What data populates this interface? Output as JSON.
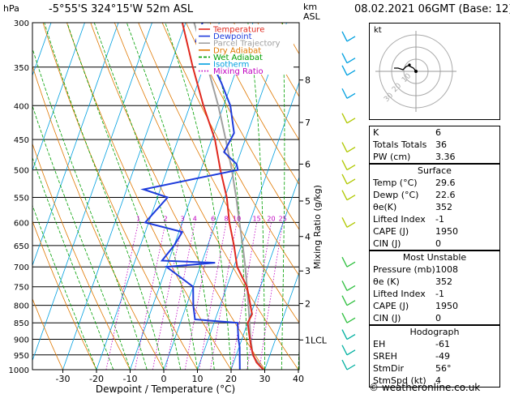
{
  "header": {
    "hpa_label": "hPa",
    "location": "-5°55'S 324°15'W 52m ASL",
    "km_label": "km",
    "asl_label": "ASL",
    "datetime": "08.02.2021 06GMT (Base: 12)"
  },
  "legend": [
    {
      "name": "Temperature",
      "color": "#e0281e"
    },
    {
      "name": "Dewpoint",
      "color": "#1e3cdc"
    },
    {
      "name": "Parcel Trajectory",
      "color": "#a0a0a0"
    },
    {
      "name": "Dry Adiabat",
      "color": "#e07800"
    },
    {
      "name": "Wet Adiabat",
      "color": "#00a000"
    },
    {
      "name": "Isotherm",
      "color": "#00a0e0"
    },
    {
      "name": "Mixing Ratio",
      "color": "#c000c0"
    }
  ],
  "chart_data": {
    "type": "skew-t",
    "xlabel": "Dewpoint / Temperature (°C)",
    "ylabel_right": "Mixing Ratio (g/kg)",
    "x_ticks": [
      "-30",
      "-20",
      "-10",
      "0",
      "10",
      "20",
      "30",
      "40"
    ],
    "p_ticks": [
      300,
      350,
      400,
      450,
      500,
      550,
      600,
      650,
      700,
      750,
      800,
      850,
      900,
      950,
      1000
    ],
    "km_ticks": [
      {
        "km": "8",
        "p": 366
      },
      {
        "km": "7",
        "p": 424
      },
      {
        "km": "6",
        "p": 490
      },
      {
        "km": "5",
        "p": 557
      },
      {
        "km": "4",
        "p": 630
      },
      {
        "km": "3",
        "p": 710
      },
      {
        "km": "2",
        "p": 795
      },
      {
        "km": "1LCL",
        "p": 902
      }
    ],
    "mixing_ratio_labels": [
      "1",
      "2",
      "3",
      "4",
      "6",
      "8",
      "10",
      "15",
      "20",
      "25"
    ],
    "temperature": [
      [
        1000,
        29.6
      ],
      [
        975,
        26.8
      ],
      [
        950,
        25.0
      ],
      [
        925,
        23.6
      ],
      [
        900,
        22.4
      ],
      [
        875,
        21.2
      ],
      [
        850,
        20.0
      ],
      [
        825,
        20.4
      ],
      [
        800,
        19.0
      ],
      [
        750,
        16.0
      ],
      [
        700,
        11.0
      ],
      [
        650,
        7.8
      ],
      [
        600,
        4.0
      ],
      [
        550,
        0.6
      ],
      [
        500,
        -4.2
      ],
      [
        450,
        -9.0
      ],
      [
        400,
        -16.0
      ],
      [
        350,
        -23.2
      ],
      [
        300,
        -31.0
      ]
    ],
    "dewpoint": [
      [
        1000,
        22.6
      ],
      [
        975,
        21.8
      ],
      [
        950,
        21.0
      ],
      [
        925,
        20.2
      ],
      [
        900,
        19.0
      ],
      [
        875,
        18.0
      ],
      [
        850,
        17.0
      ],
      [
        840,
        4.0
      ],
      [
        800,
        2.0
      ],
      [
        750,
        0.0
      ],
      [
        700,
        -10.0
      ],
      [
        690,
        4.0
      ],
      [
        685,
        -12.0
      ],
      [
        650,
        -10.0
      ],
      [
        620,
        -9.0
      ],
      [
        600,
        -21.0
      ],
      [
        550,
        -17.0
      ],
      [
        535,
        -25.0
      ],
      [
        500,
        1.0
      ],
      [
        490,
        0.0
      ],
      [
        470,
        -5.0
      ],
      [
        440,
        -4.0
      ],
      [
        400,
        -8.0
      ],
      [
        370,
        -13.0
      ],
      [
        340,
        -19.0
      ],
      [
        320,
        -25.0
      ],
      [
        300,
        -25.0
      ]
    ],
    "parcel": [
      [
        1000,
        29.6
      ],
      [
        975,
        27.2
      ],
      [
        950,
        24.8
      ],
      [
        925,
        23.8
      ],
      [
        900,
        22.6
      ],
      [
        850,
        20.6
      ],
      [
        800,
        18.4
      ],
      [
        750,
        16.0
      ],
      [
        700,
        13.4
      ],
      [
        650,
        10.4
      ],
      [
        600,
        7.0
      ],
      [
        550,
        3.4
      ],
      [
        500,
        -0.8
      ],
      [
        450,
        -5.8
      ],
      [
        400,
        -11.6
      ],
      [
        350,
        -18.8
      ],
      [
        300,
        -27.5
      ]
    ]
  },
  "hodograph": {
    "label": "kt",
    "ring_labels": [
      "10",
      "20",
      "30"
    ]
  },
  "indices": [
    {
      "label": "K",
      "value": "6"
    },
    {
      "label": "Totals Totals",
      "value": "36"
    },
    {
      "label": "PW (cm)",
      "value": "3.36"
    }
  ],
  "surface": {
    "title": "Surface",
    "rows": [
      {
        "label": "Temp (°C)",
        "value": "29.6"
      },
      {
        "label": "Dewp (°C)",
        "value": "22.6"
      },
      {
        "label": "θe(K)",
        "value": "352"
      },
      {
        "label": "Lifted Index",
        "value": "-1"
      },
      {
        "label": "CAPE (J)",
        "value": "1950"
      },
      {
        "label": "CIN (J)",
        "value": "0"
      }
    ]
  },
  "most_unstable": {
    "title": "Most Unstable",
    "rows": [
      {
        "label": "Pressure (mb)",
        "value": "1008"
      },
      {
        "label": "θe (K)",
        "value": "352"
      },
      {
        "label": "Lifted Index",
        "value": "-1"
      },
      {
        "label": "CAPE (J)",
        "value": "1950"
      },
      {
        "label": "CIN (J)",
        "value": "0"
      }
    ]
  },
  "hodograph_table": {
    "title": "Hodograph",
    "rows": [
      {
        "label": "EH",
        "value": "-61"
      },
      {
        "label": "SREH",
        "value": "-49"
      },
      {
        "label": "StmDir",
        "value": "56°"
      },
      {
        "label": "StmSpd (kt)",
        "value": "4"
      }
    ]
  },
  "footer": "© weatheronline.co.uk"
}
